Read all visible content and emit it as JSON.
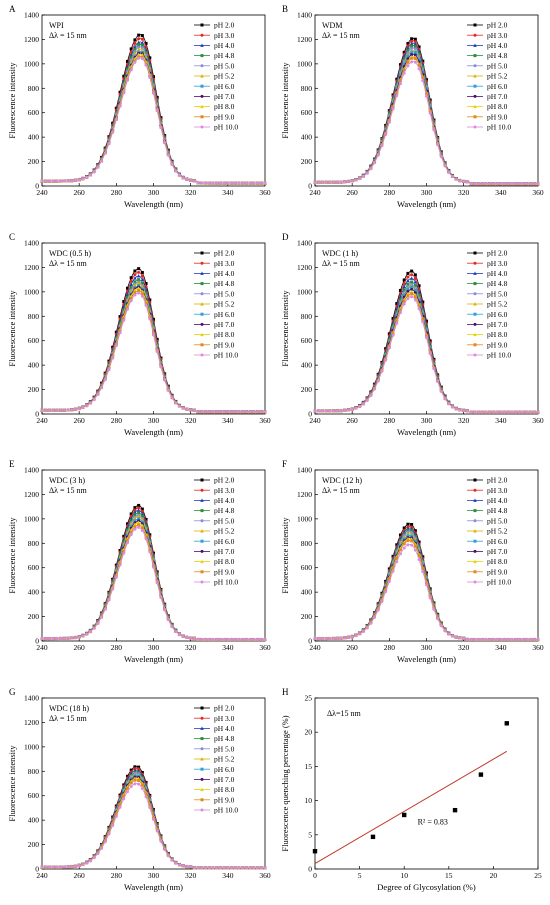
{
  "palette": [
    "#000000",
    "#e8261e",
    "#1f3fbf",
    "#2a8f3a",
    "#8a8ad8",
    "#d9b300",
    "#2e9fd8",
    "#4b0f6e",
    "#e7d200",
    "#e08a1c",
    "#d98be0"
  ],
  "chart_data": [
    {
      "type": "line",
      "letter": "A",
      "inner_title": "WPI",
      "delta_label": "Δλ = 15 nm",
      "xlabel": "Wavelength (nm)",
      "ylabel": "Fluorescence intensity",
      "xlim": [
        240,
        360
      ],
      "ylim": [
        0,
        1400
      ],
      "xticks": [
        240,
        260,
        280,
        300,
        320,
        340,
        360
      ],
      "yticks": [
        0,
        200,
        400,
        600,
        800,
        1000,
        1200,
        1400
      ],
      "peak_x": 293,
      "baseline": 40,
      "series": [
        {
          "name": "pH 2.0",
          "peak": 1240
        },
        {
          "name": "pH 3.0",
          "peak": 1210
        },
        {
          "name": "pH 4.0",
          "peak": 1180
        },
        {
          "name": "pH 4.8",
          "peak": 1160
        },
        {
          "name": "pH 5.0",
          "peak": 1140
        },
        {
          "name": "pH 5.2",
          "peak": 1120
        },
        {
          "name": "pH 6.0",
          "peak": 1100
        },
        {
          "name": "pH 7.0",
          "peak": 1090
        },
        {
          "name": "pH 8.0",
          "peak": 1080
        },
        {
          "name": "pH 9.0",
          "peak": 1060
        },
        {
          "name": "pH 10.0",
          "peak": 1050
        }
      ]
    },
    {
      "type": "line",
      "letter": "B",
      "inner_title": "WDM",
      "delta_label": "Δλ = 15 nm",
      "xlabel": "Wavelength (nm)",
      "ylabel": "Fluorescence intensity",
      "xlim": [
        240,
        360
      ],
      "ylim": [
        0,
        1400
      ],
      "xticks": [
        240,
        260,
        280,
        300,
        320,
        340,
        360
      ],
      "yticks": [
        0,
        200,
        400,
        600,
        800,
        1000,
        1200,
        1400
      ],
      "peak_x": 293,
      "baseline": 30,
      "series": [
        {
          "name": "pH 2.0",
          "peak": 1210
        },
        {
          "name": "pH 3.0",
          "peak": 1190
        },
        {
          "name": "pH 4.0",
          "peak": 1170
        },
        {
          "name": "pH 4.8",
          "peak": 1150
        },
        {
          "name": "pH 5.0",
          "peak": 1130
        },
        {
          "name": "pH 5.2",
          "peak": 1110
        },
        {
          "name": "pH 6.0",
          "peak": 1100
        },
        {
          "name": "pH 7.0",
          "peak": 1080
        },
        {
          "name": "pH 8.0",
          "peak": 1060
        },
        {
          "name": "pH 9.0",
          "peak": 1050
        },
        {
          "name": "pH 10.0",
          "peak": 1020
        }
      ]
    },
    {
      "type": "line",
      "letter": "C",
      "inner_title": "WDC (0.5 h)",
      "delta_label": "Δλ = 15 nm",
      "xlabel": "Wavelength (nm)",
      "ylabel": "Fluorescence intensity",
      "xlim": [
        240,
        360
      ],
      "ylim": [
        0,
        1400
      ],
      "xticks": [
        240,
        260,
        280,
        300,
        320,
        340,
        360
      ],
      "yticks": [
        0,
        200,
        400,
        600,
        800,
        1000,
        1200,
        1400
      ],
      "peak_x": 292,
      "baseline": 30,
      "series": [
        {
          "name": "pH 2.0",
          "peak": 1190
        },
        {
          "name": "pH 3.0",
          "peak": 1160
        },
        {
          "name": "pH 4.0",
          "peak": 1130
        },
        {
          "name": "pH 4.8",
          "peak": 1100
        },
        {
          "name": "pH 5.0",
          "peak": 1080
        },
        {
          "name": "pH 5.2",
          "peak": 1070
        },
        {
          "name": "pH 6.0",
          "peak": 1050
        },
        {
          "name": "pH 7.0",
          "peak": 1040
        },
        {
          "name": "pH 8.0",
          "peak": 1030
        },
        {
          "name": "pH 9.0",
          "peak": 1010
        },
        {
          "name": "pH 10.0",
          "peak": 990
        }
      ]
    },
    {
      "type": "line",
      "letter": "D",
      "inner_title": "WDC (1 h)",
      "delta_label": "Δλ = 15 nm",
      "xlabel": "Wavelength (nm)",
      "ylabel": "Fluorescence intensity",
      "xlim": [
        240,
        360
      ],
      "ylim": [
        0,
        1400
      ],
      "xticks": [
        240,
        260,
        280,
        300,
        320,
        340,
        360
      ],
      "yticks": [
        0,
        200,
        400,
        600,
        800,
        1000,
        1200,
        1400
      ],
      "peak_x": 292,
      "baseline": 25,
      "series": [
        {
          "name": "pH 2.0",
          "peak": 1170
        },
        {
          "name": "pH 3.0",
          "peak": 1140
        },
        {
          "name": "pH 4.0",
          "peak": 1110
        },
        {
          "name": "pH 4.8",
          "peak": 1080
        },
        {
          "name": "pH 5.0",
          "peak": 1060
        },
        {
          "name": "pH 5.2",
          "peak": 1050
        },
        {
          "name": "pH 6.0",
          "peak": 1040
        },
        {
          "name": "pH 7.0",
          "peak": 1020
        },
        {
          "name": "pH 8.0",
          "peak": 1000
        },
        {
          "name": "pH 9.0",
          "peak": 985
        },
        {
          "name": "pH 10.0",
          "peak": 960
        }
      ]
    },
    {
      "type": "line",
      "letter": "E",
      "inner_title": "WDC (3 h)",
      "delta_label": "Δλ = 15 nm",
      "xlabel": "Wavelength (nm)",
      "ylabel": "Fluorescence intensity",
      "xlim": [
        240,
        360
      ],
      "ylim": [
        0,
        1400
      ],
      "xticks": [
        240,
        260,
        280,
        300,
        320,
        340,
        360
      ],
      "yticks": [
        0,
        200,
        400,
        600,
        800,
        1000,
        1200,
        1400
      ],
      "peak_x": 292,
      "baseline": 20,
      "series": [
        {
          "name": "pH 2.0",
          "peak": 1110
        },
        {
          "name": "pH 3.0",
          "peak": 1090
        },
        {
          "name": "pH 4.0",
          "peak": 1070
        },
        {
          "name": "pH 4.8",
          "peak": 1050
        },
        {
          "name": "pH 5.0",
          "peak": 1030
        },
        {
          "name": "pH 5.2",
          "peak": 1020
        },
        {
          "name": "pH 6.0",
          "peak": 1000
        },
        {
          "name": "pH 7.0",
          "peak": 985
        },
        {
          "name": "pH 8.0",
          "peak": 970
        },
        {
          "name": "pH 9.0",
          "peak": 950
        },
        {
          "name": "pH 10.0",
          "peak": 930
        }
      ]
    },
    {
      "type": "line",
      "letter": "F",
      "inner_title": "WDC (12 h)",
      "delta_label": "Δλ = 15 nm",
      "xlabel": "Wavelength (nm)",
      "ylabel": "Fluorescence intensity",
      "xlim": [
        240,
        360
      ],
      "ylim": [
        0,
        1400
      ],
      "xticks": [
        240,
        260,
        280,
        300,
        320,
        340,
        360
      ],
      "yticks": [
        0,
        200,
        400,
        600,
        800,
        1000,
        1200,
        1400
      ],
      "peak_x": 291,
      "baseline": 20,
      "series": [
        {
          "name": "pH 2.0",
          "peak": 960
        },
        {
          "name": "pH 3.0",
          "peak": 940
        },
        {
          "name": "pH 4.0",
          "peak": 925
        },
        {
          "name": "pH 4.8",
          "peak": 910
        },
        {
          "name": "pH 5.0",
          "peak": 895
        },
        {
          "name": "pH 5.2",
          "peak": 880
        },
        {
          "name": "pH 6.0",
          "peak": 865
        },
        {
          "name": "pH 7.0",
          "peak": 850
        },
        {
          "name": "pH 8.0",
          "peak": 840
        },
        {
          "name": "pH 9.0",
          "peak": 825
        },
        {
          "name": "pH 10.0",
          "peak": 790
        }
      ]
    },
    {
      "type": "line",
      "letter": "G",
      "inner_title": "WDC (18 h)",
      "delta_label": "Δλ = 15 nm",
      "xlabel": "Wavelength (nm)",
      "ylabel": "Fluorescence intensity",
      "xlim": [
        240,
        360
      ],
      "ylim": [
        0,
        1400
      ],
      "xticks": [
        240,
        260,
        280,
        300,
        320,
        340,
        360
      ],
      "yticks": [
        0,
        200,
        400,
        600,
        800,
        1000,
        1200,
        1400
      ],
      "peak_x": 291,
      "baseline": 15,
      "series": [
        {
          "name": "pH 2.0",
          "peak": 840
        },
        {
          "name": "pH 3.0",
          "peak": 825
        },
        {
          "name": "pH 4.0",
          "peak": 810
        },
        {
          "name": "pH 4.8",
          "peak": 795
        },
        {
          "name": "pH 5.0",
          "peak": 785
        },
        {
          "name": "pH 5.2",
          "peak": 775
        },
        {
          "name": "pH 6.0",
          "peak": 765
        },
        {
          "name": "pH 7.0",
          "peak": 755
        },
        {
          "name": "pH 8.0",
          "peak": 745
        },
        {
          "name": "pH 9.0",
          "peak": 730
        },
        {
          "name": "pH 10.0",
          "peak": 700
        }
      ]
    },
    {
      "type": "scatter",
      "letter": "H",
      "inner_title": "Δλ=15 nm",
      "xlabel": "Degree of Glycosylation (%)",
      "ylabel": "Fluorescence quenching percentage (%)",
      "xlim": [
        0,
        25
      ],
      "ylim": [
        0,
        25
      ],
      "xticks": [
        0,
        5,
        10,
        15,
        20,
        25
      ],
      "yticks": [
        0,
        5,
        10,
        15,
        20,
        25
      ],
      "points": [
        {
          "x": 0,
          "y": 2.6
        },
        {
          "x": 6.5,
          "y": 4.7
        },
        {
          "x": 10.0,
          "y": 7.9
        },
        {
          "x": 15.7,
          "y": 8.6
        },
        {
          "x": 18.6,
          "y": 13.8
        },
        {
          "x": 21.5,
          "y": 21.3
        }
      ],
      "fit": {
        "x": [
          0,
          21.5
        ],
        "y": [
          0.8,
          17.2
        ]
      },
      "annotation": "R² = 0.83"
    }
  ]
}
